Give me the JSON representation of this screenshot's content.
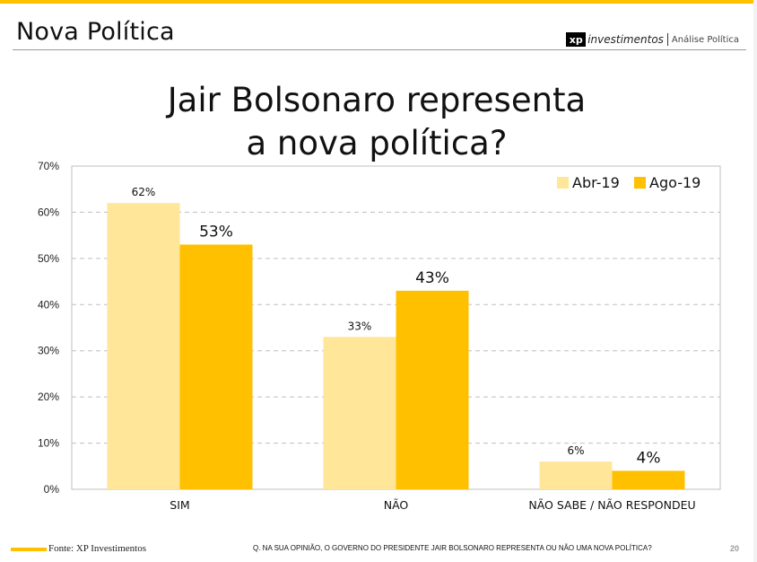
{
  "header": {
    "title": "Nova Política",
    "brand_mark": "xp",
    "brand_name": "investimentos",
    "brand_section": "Análise Política"
  },
  "colors": {
    "accent": "#FFC000",
    "abr": "#FFE699",
    "ago": "#FFC000"
  },
  "chart_data": {
    "type": "bar",
    "title": "Jair Bolsonaro representa a nova política?",
    "title_lines": [
      "Jair Bolsonaro representa",
      "a nova política?"
    ],
    "categories": [
      "SIM",
      "NÃO",
      "NÃO SABE / NÃO RESPONDEU"
    ],
    "series": [
      {
        "name": "Abr-19",
        "values": [
          62,
          33,
          6
        ],
        "labels": [
          "62%",
          "33%",
          "6%"
        ]
      },
      {
        "name": "Ago-19",
        "values": [
          53,
          43,
          4
        ],
        "labels": [
          "53%",
          "43%",
          "4%"
        ]
      }
    ],
    "ylim": [
      0,
      70
    ],
    "yticks": [
      "0%",
      "10%",
      "20%",
      "30%",
      "40%",
      "50%",
      "60%",
      "70%"
    ],
    "grid": true,
    "legend": "top-right"
  },
  "footer": {
    "source": "Fonte: XP Investimentos",
    "question": "Q. NA SUA OPINIÃO, O GOVERNO DO PRESIDENTE JAIR BOLSONARO REPRESENTA OU NÃO UMA NOVA POLÍTICA?",
    "page_number": "20"
  }
}
